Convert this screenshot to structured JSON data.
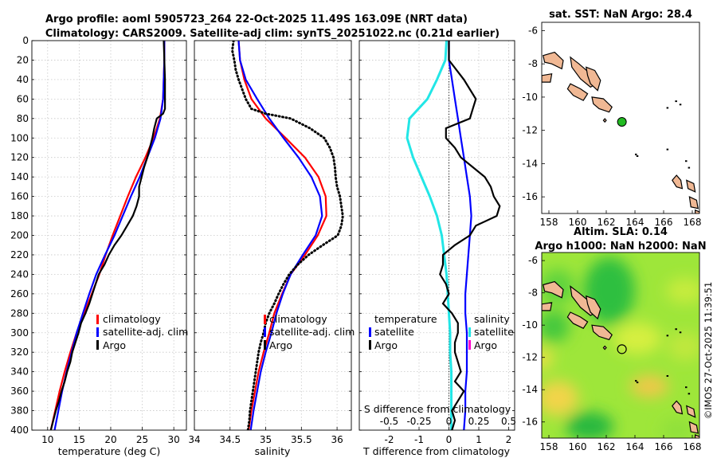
{
  "title_line1": "Argo profile: aoml 5905723_264 22-Oct-2025 11.49S 163.09E (NRT data)",
  "title_line2": "Climatology: CARS2009. Satellite-adj clim: synTS_20251022.nc (0.21d earlier)",
  "credit": "©IMOS 27-Oct-2025 11:39:51",
  "depth_ticks": [
    "0",
    "20",
    "40",
    "60",
    "80",
    "100",
    "120",
    "140",
    "160",
    "180",
    "200",
    "220",
    "240",
    "260",
    "280",
    "300",
    "320",
    "340",
    "360",
    "380",
    "400"
  ],
  "colors": {
    "climatology": "#ff0000",
    "satellite": "#0000ff",
    "argo": "#000000",
    "sal_sat": "#00e5e5",
    "sal_argo": "#ff00cc",
    "land": "#f0b894",
    "dot": "#22bb22"
  },
  "chart_data": [
    {
      "type": "line",
      "name": "temperature",
      "xlabel": "temperature (deg C)",
      "xlim": [
        7.5,
        32
      ],
      "xticks": [
        "10",
        "15",
        "20",
        "25",
        "30"
      ],
      "ylim": [
        0,
        400
      ],
      "legend": [
        "climatology",
        "satellite-adj. clim",
        "Argo"
      ],
      "series": [
        {
          "name": "climatology",
          "depth": [
            0,
            20,
            40,
            60,
            80,
            100,
            120,
            140,
            160,
            180,
            200,
            220,
            240,
            260,
            280,
            300,
            320,
            340,
            360,
            380,
            400
          ],
          "values": [
            28.5,
            28.5,
            28.4,
            28.3,
            27.8,
            26.8,
            25.5,
            24.0,
            22.7,
            21.5,
            20.3,
            19.2,
            18.2,
            17.0,
            15.8,
            14.6,
            13.6,
            12.7,
            11.9,
            11.2,
            10.5
          ]
        },
        {
          "name": "satellite-adj. clim",
          "depth": [
            0,
            20,
            40,
            60,
            80,
            100,
            120,
            140,
            160,
            180,
            200,
            220,
            240,
            260,
            280,
            300,
            320,
            340,
            360,
            380,
            400
          ],
          "values": [
            28.5,
            28.5,
            28.4,
            28.3,
            27.9,
            27.0,
            25.8,
            24.6,
            23.2,
            21.9,
            20.6,
            19.1,
            17.7,
            16.6,
            15.6,
            14.6,
            13.8,
            13.0,
            12.3,
            11.7,
            11.1
          ]
        },
        {
          "name": "Argo",
          "depth": [
            0,
            20,
            40,
            60,
            70,
            75,
            80,
            90,
            100,
            110,
            120,
            130,
            140,
            150,
            160,
            170,
            180,
            190,
            200,
            210,
            220,
            230,
            240,
            250,
            260,
            270,
            280,
            290,
            300,
            310,
            320,
            330,
            340,
            350,
            360,
            370,
            380,
            390,
            400
          ],
          "values": [
            28.4,
            28.5,
            28.6,
            28.6,
            28.6,
            28.3,
            27.3,
            26.9,
            26.6,
            26.2,
            25.8,
            25.3,
            24.9,
            24.5,
            24.5,
            24.1,
            23.5,
            22.6,
            21.7,
            20.6,
            19.7,
            19.0,
            18.1,
            17.6,
            17.1,
            16.6,
            16.0,
            15.3,
            14.9,
            14.4,
            13.9,
            13.6,
            13.1,
            12.7,
            12.2,
            11.8,
            11.3,
            10.9,
            10.5
          ]
        }
      ]
    },
    {
      "type": "line",
      "name": "salinity",
      "xlabel": "salinity",
      "xlim": [
        34.0,
        36.2
      ],
      "xticks": [
        "34",
        "34.5",
        "35",
        "35.5",
        "36"
      ],
      "ylim": [
        0,
        400
      ],
      "legend": [
        "climatology",
        "satellite-adj. clim",
        "Argo"
      ],
      "series": [
        {
          "name": "climatology",
          "depth": [
            0,
            20,
            40,
            60,
            80,
            100,
            120,
            140,
            160,
            180,
            200,
            220,
            240,
            260,
            280,
            300,
            320,
            340,
            360,
            380,
            400
          ],
          "values": [
            34.62,
            34.64,
            34.7,
            34.8,
            35.0,
            35.28,
            35.55,
            35.74,
            35.84,
            35.85,
            35.73,
            35.55,
            35.35,
            35.23,
            35.12,
            35.05,
            34.97,
            34.9,
            34.85,
            34.8,
            34.76
          ]
        },
        {
          "name": "satellite-adj. clim",
          "depth": [
            0,
            20,
            40,
            60,
            80,
            100,
            120,
            140,
            160,
            180,
            200,
            220,
            240,
            260,
            280,
            300,
            320,
            340,
            360,
            380,
            400
          ],
          "values": [
            34.62,
            34.64,
            34.72,
            34.88,
            35.05,
            35.25,
            35.46,
            35.64,
            35.76,
            35.79,
            35.7,
            35.52,
            35.35,
            35.24,
            35.15,
            35.08,
            35.0,
            34.93,
            34.88,
            34.83,
            34.79
          ]
        },
        {
          "name": "Argo",
          "depth": [
            0,
            10,
            20,
            30,
            40,
            50,
            60,
            70,
            75,
            80,
            90,
            100,
            110,
            120,
            130,
            140,
            150,
            160,
            170,
            180,
            190,
            200,
            210,
            220,
            230,
            240,
            250,
            260,
            270,
            280,
            290,
            300,
            310,
            320,
            330,
            340,
            350,
            360,
            370,
            380,
            390,
            400
          ],
          "values": [
            34.55,
            34.53,
            34.56,
            34.58,
            34.62,
            34.67,
            34.72,
            34.8,
            35.0,
            35.35,
            35.62,
            35.82,
            35.9,
            35.95,
            35.97,
            35.98,
            36.0,
            36.04,
            36.06,
            36.08,
            36.06,
            36.01,
            35.8,
            35.6,
            35.45,
            35.33,
            35.25,
            35.18,
            35.12,
            35.05,
            35.0,
            34.97,
            34.93,
            34.9,
            34.88,
            34.86,
            34.84,
            34.82,
            34.8,
            34.78,
            34.77,
            34.75
          ]
        }
      ]
    },
    {
      "type": "line",
      "name": "difference",
      "xlabel": "T difference from climatology",
      "xlabel2": "S difference from climatology",
      "xlim": [
        -3,
        2.2
      ],
      "xticks": [
        "-2",
        "-1",
        "0",
        "1",
        "2"
      ],
      "xticks2": [
        "-0.5",
        "-0.25",
        "0",
        "0.25",
        "0.5"
      ],
      "ylim": [
        0,
        400
      ],
      "legend_temperature": [
        "temperature",
        "satellite",
        "Argo"
      ],
      "legend_salinity": [
        "salinity",
        "satellite",
        "Argo"
      ],
      "series": [
        {
          "name": "T satellite",
          "depth": [
            0,
            20,
            40,
            60,
            80,
            100,
            120,
            140,
            160,
            180,
            200,
            220,
            240,
            260,
            280,
            300,
            320,
            340,
            360,
            380,
            400
          ],
          "values": [
            0.0,
            0.0,
            0.1,
            0.2,
            0.3,
            0.4,
            0.5,
            0.6,
            0.7,
            0.75,
            0.7,
            0.65,
            0.6,
            0.55,
            0.55,
            0.6,
            0.6,
            0.6,
            0.55,
            0.55,
            0.5
          ]
        },
        {
          "name": "T Argo",
          "depth": [
            0,
            20,
            40,
            60,
            70,
            80,
            90,
            100,
            110,
            120,
            130,
            140,
            150,
            160,
            170,
            180,
            190,
            200,
            210,
            220,
            230,
            240,
            250,
            260,
            270,
            280,
            290,
            300,
            310,
            320,
            330,
            340,
            350,
            360,
            370,
            380,
            390,
            400
          ],
          "values": [
            0.0,
            0.0,
            0.5,
            0.9,
            0.8,
            0.7,
            -0.1,
            -0.1,
            0.2,
            0.4,
            0.8,
            1.2,
            1.4,
            1.5,
            1.7,
            1.6,
            0.9,
            0.7,
            0.2,
            -0.2,
            -0.2,
            -0.3,
            -0.1,
            0.0,
            -0.2,
            0.1,
            0.3,
            0.3,
            0.2,
            0.2,
            0.3,
            0.4,
            0.2,
            0.5,
            0.3,
            0.1,
            0.2,
            0.1
          ]
        },
        {
          "name": "S satellite",
          "depth": [
            0,
            20,
            40,
            60,
            80,
            100,
            120,
            140,
            160,
            180,
            200,
            220,
            240,
            260,
            280,
            300,
            320,
            340,
            360,
            380,
            400
          ],
          "values": [
            -0.02,
            -0.03,
            -0.1,
            -0.18,
            -0.33,
            -0.35,
            -0.3,
            -0.23,
            -0.16,
            -0.1,
            -0.06,
            -0.04,
            -0.02,
            -0.01,
            0.0,
            0.01,
            0.01,
            0.02,
            0.02,
            0.02,
            0.02
          ]
        }
      ]
    },
    {
      "type": "map",
      "name": "sst-map",
      "title": "sat. SST: NaN Argo: 28.4",
      "xlim": [
        157.5,
        168.5
      ],
      "ylim": [
        -17,
        -5.5
      ],
      "xticks": [
        "158",
        "160",
        "162",
        "164",
        "166",
        "168"
      ],
      "yticks": [
        "-6",
        "-8",
        "-10",
        "-12",
        "-14",
        "-16"
      ],
      "argo_position": [
        163.09,
        -11.49
      ]
    },
    {
      "type": "heatmap",
      "name": "sla-map",
      "title_line1": "Altim. SLA: 0.14",
      "title_line2": "Argo h1000: NaN h2000: NaN",
      "xlim": [
        157.5,
        168.5
      ],
      "ylim": [
        -17,
        -5.5
      ],
      "xticks": [
        "158",
        "160",
        "162",
        "164",
        "166",
        "168"
      ],
      "yticks": [
        "-6",
        "-8",
        "-10",
        "-12",
        "-14",
        "-16"
      ],
      "argo_position": [
        163.09,
        -11.49
      ]
    }
  ]
}
